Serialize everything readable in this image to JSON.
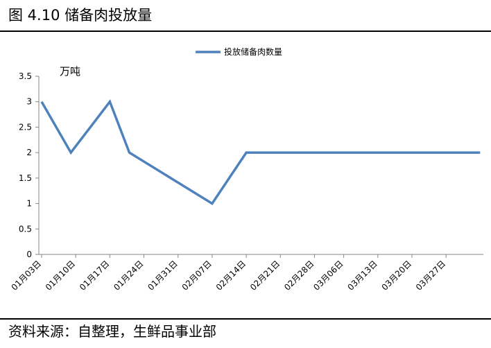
{
  "figure": {
    "title": "图 4.10  储备肉投放量",
    "source": "资料来源：自整理，生鲜品事业部"
  },
  "chart_data": {
    "type": "line",
    "unit_label": "万吨",
    "categories": [
      "01月03日",
      "01月10日",
      "01月17日",
      "01月24日",
      "01月31日",
      "02月07日",
      "02月14日",
      "02月21日",
      "02月28日",
      "03月06日",
      "03月13日",
      "03月20日",
      "03月27日"
    ],
    "x_day_labels": [
      "01月03日",
      "01月10日",
      "01月17日",
      "01月24日",
      "01月31日",
      "02月07日",
      "02月14日",
      "02月21日",
      "02月28日",
      "03月06日",
      "03月13日",
      "03月20日",
      "03月27日"
    ],
    "series": [
      {
        "name": "投放储备肉数量",
        "color": "#4F81BD",
        "points": [
          {
            "x": "01月03日",
            "y": 3
          },
          {
            "x": "01月09日",
            "y": 2
          },
          {
            "x": "01月17日",
            "y": 3
          },
          {
            "x": "01月21日",
            "y": 2
          },
          {
            "x": "02月07日",
            "y": 1
          },
          {
            "x": "02月14日",
            "y": 2
          },
          {
            "x": "04月03日",
            "y": 2
          }
        ]
      }
    ],
    "ylim": [
      0,
      3.5
    ],
    "yticks": [
      "0",
      "0.5",
      "1",
      "1.5",
      "2",
      "2.5",
      "3",
      "3.5"
    ],
    "legend_position": "top-center",
    "grid": false
  }
}
